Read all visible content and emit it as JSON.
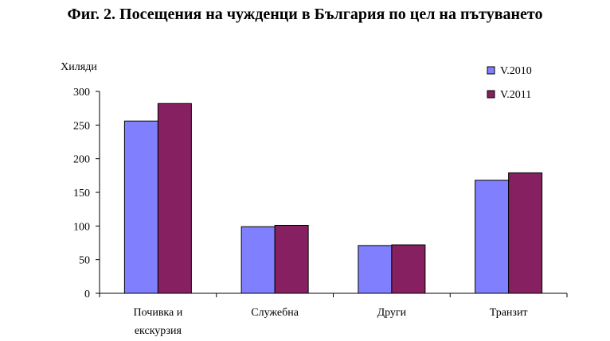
{
  "chart_data": {
    "type": "bar",
    "title": "Фиг. 2. Посещения на чужденци в България по цел на пътуването",
    "ylabel": "Хиляди",
    "xlabel": "",
    "categories": [
      [
        "Почивка и",
        "екскурзия"
      ],
      [
        "Служебна"
      ],
      [
        "Други"
      ],
      [
        "Транзит"
      ]
    ],
    "series": [
      {
        "name": "V.2010",
        "color": "#8080ff",
        "values": [
          256,
          99,
          71,
          168
        ]
      },
      {
        "name": "V.2011",
        "color": "#862060",
        "values": [
          282,
          101,
          72,
          179
        ]
      }
    ],
    "ylim": [
      0,
      300
    ],
    "yticks": [
      0,
      50,
      100,
      150,
      200,
      250,
      300
    ],
    "grid": false,
    "legend_position": "top-right"
  }
}
